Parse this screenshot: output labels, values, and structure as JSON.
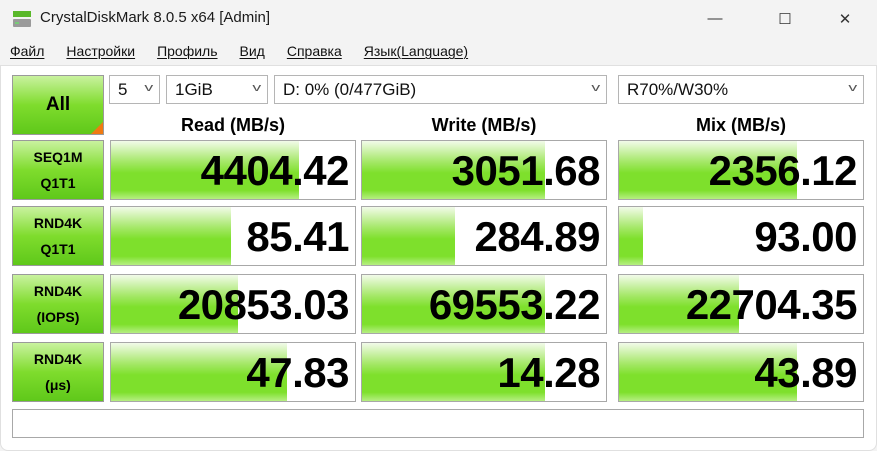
{
  "window": {
    "title": "CrystalDiskMark 8.0.5 x64 [Admin]",
    "minimize": "—",
    "maximize": "☐",
    "close": "✕"
  },
  "menu": [
    "Файл",
    "Настройки",
    "Профиль",
    "Вид",
    "Справка",
    "Язык(Language)"
  ],
  "controls": {
    "all_label": "All",
    "count": "5",
    "size": "1GiB",
    "drive": "D: 0% (0/477GiB)",
    "mix": "R70%/W30%"
  },
  "columns": [
    "Read (MB/s)",
    "Write (MB/s)",
    "Mix (MB/s)"
  ],
  "rows": [
    {
      "label1": "SEQ1M",
      "label2": "Q1T1",
      "values": [
        "4404.42",
        "3051.68",
        "2356.12"
      ],
      "fills": [
        0.77,
        0.75,
        0.73
      ]
    },
    {
      "label1": "RND4K",
      "label2": "Q1T1",
      "values": [
        "85.41",
        "284.89",
        "93.00"
      ],
      "fills": [
        0.49,
        0.38,
        0.1
      ]
    },
    {
      "label1": "RND4K",
      "label2": "(IOPS)",
      "values": [
        "20853.03",
        "69553.22",
        "22704.35"
      ],
      "fills": [
        0.52,
        0.75,
        0.49
      ]
    },
    {
      "label1": "RND4K",
      "label2": "(μs)",
      "values": [
        "47.83",
        "14.28",
        "43.89"
      ],
      "fills": [
        0.72,
        0.75,
        0.73
      ]
    }
  ],
  "status": "",
  "colors": {
    "bar": "#7ee02c",
    "corner": "#f07a12"
  }
}
